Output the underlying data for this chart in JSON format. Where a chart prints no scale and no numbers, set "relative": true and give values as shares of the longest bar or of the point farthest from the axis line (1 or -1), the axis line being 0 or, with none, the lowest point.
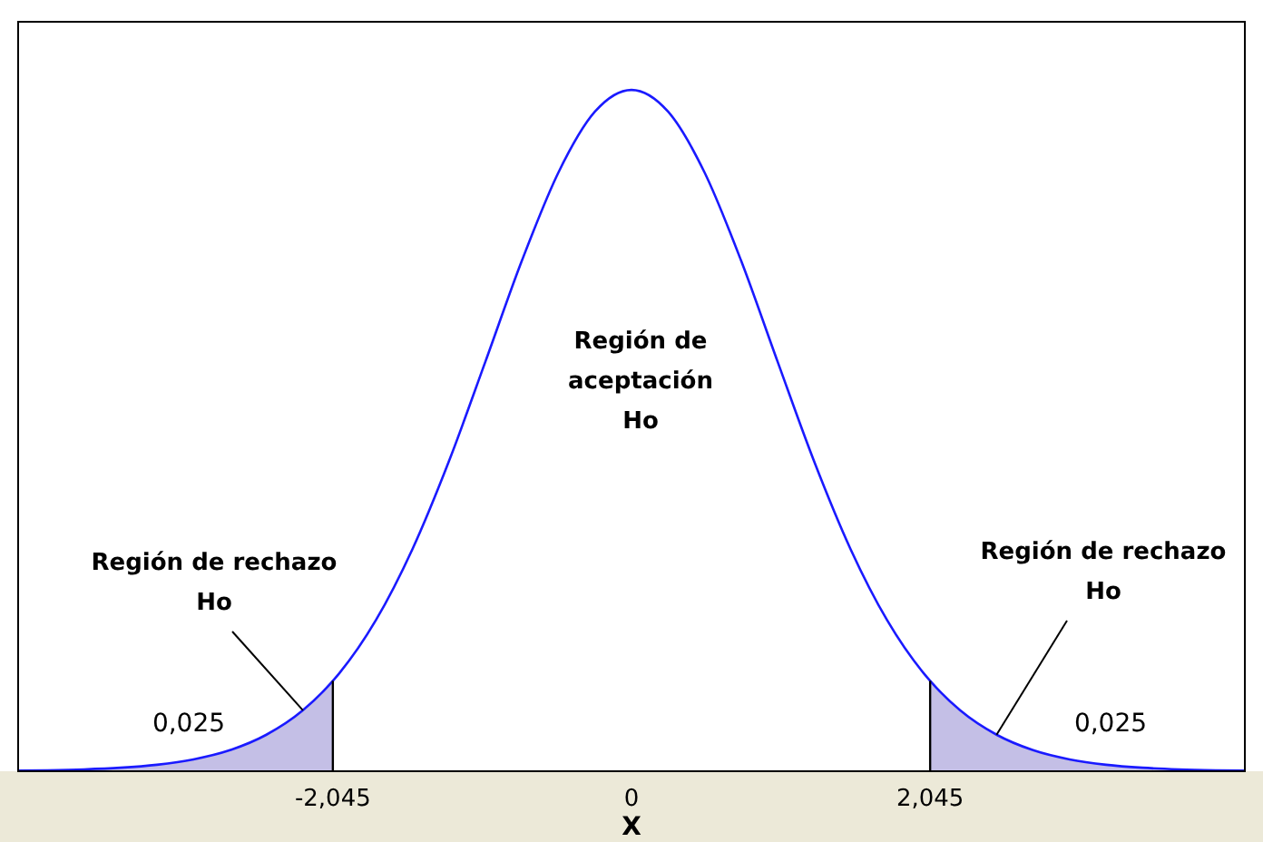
{
  "chart_data": {
    "type": "line",
    "relative": true,
    "xlabel": "X",
    "xlim": [
      -4.2,
      4.2
    ],
    "xticks": [
      {
        "value": -2.045,
        "label": "-2,045"
      },
      {
        "value": 0,
        "label": "0"
      },
      {
        "value": 2.045,
        "label": "2,045"
      }
    ],
    "series": [
      {
        "type": "area",
        "color": "#c4bfe6",
        "x": [
          -4.2,
          -4,
          -3.75,
          -3.5,
          -3.25,
          -3,
          -2.75,
          -2.5,
          -2.25,
          -2.045
        ],
        "values": [
          0.0008,
          0.0014,
          0.0027,
          0.0051,
          0.0095,
          0.0174,
          0.0309,
          0.0536,
          0.0895,
          0.1326
        ]
      },
      {
        "type": "area",
        "color": "#c4bfe6",
        "x": [
          2.045,
          2.25,
          2.5,
          2.75,
          3,
          3.25,
          3.5,
          3.75,
          4,
          4.2
        ],
        "values": [
          0.1326,
          0.0895,
          0.0536,
          0.0309,
          0.0174,
          0.0095,
          0.0051,
          0.0027,
          0.0014,
          0.0008
        ]
      },
      {
        "color": "#1a1aff",
        "x": [
          -4.2,
          -4,
          -3.75,
          -3.5,
          -3.25,
          -3,
          -2.75,
          -2.5,
          -2.25,
          -2.045,
          -2,
          -1.75,
          -1.5,
          -1.25,
          -1,
          -0.75,
          -0.5,
          -0.25,
          0,
          0.25,
          0.5,
          0.75,
          1,
          1.25,
          1.5,
          1.75,
          2,
          2.045,
          2.25,
          2.5,
          2.75,
          3,
          3.25,
          3.5,
          3.75,
          4,
          4.2
        ],
        "values": [
          0.0008,
          0.0014,
          0.0027,
          0.0051,
          0.0095,
          0.0174,
          0.0309,
          0.0536,
          0.0895,
          0.1326,
          0.144,
          0.2218,
          0.326,
          0.4551,
          0.6014,
          0.7497,
          0.879,
          0.9682,
          1,
          0.9682,
          0.879,
          0.7497,
          0.6014,
          0.4551,
          0.326,
          0.2218,
          0.144,
          0.1326,
          0.0895,
          0.0536,
          0.0309,
          0.0174,
          0.0095,
          0.0051,
          0.0027,
          0.0014,
          0.0008
        ]
      }
    ],
    "ref_lines": [
      {
        "axis": "x",
        "value": -2.045,
        "color": "#000000"
      },
      {
        "axis": "x",
        "value": 2.045,
        "color": "#000000"
      }
    ],
    "annotations": [
      "Región de aceptación Ho",
      {
        "text": "Región de rechazo Ho",
        "x": -2.25,
        "y": 0.0895
      },
      {
        "text": "Región de rechazo Ho",
        "x": 2.5,
        "y": 0.0536
      },
      "0,025",
      "0,025"
    ]
  }
}
